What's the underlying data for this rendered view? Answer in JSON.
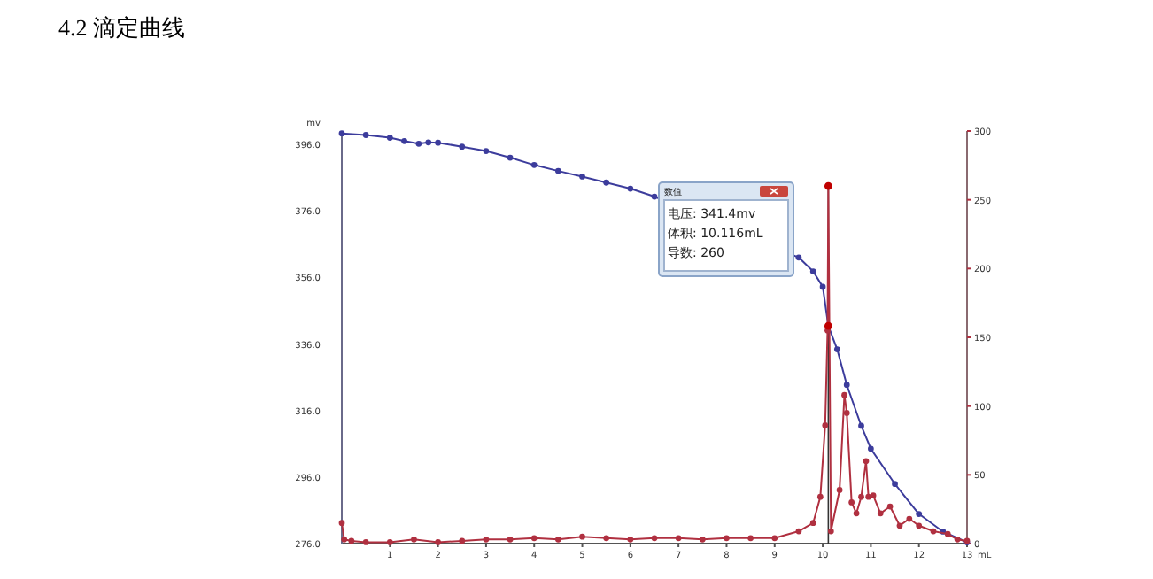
{
  "chart_data": {
    "type": "line",
    "title": "4.2  滴定曲线",
    "xlabel": "mL",
    "ylabel": "mv",
    "xlim": [
      0,
      13
    ],
    "xticks": [
      1,
      2,
      3,
      4,
      5,
      6,
      7,
      8,
      9,
      10,
      11,
      12,
      13
    ],
    "ylim": [
      276,
      400
    ],
    "yticks": [
      {
        "value": 276,
        "label": "276.0"
      },
      {
        "value": 296,
        "label": "296.0"
      },
      {
        "value": 316,
        "label": "316.0"
      },
      {
        "value": 336,
        "label": "336.0"
      },
      {
        "value": 356,
        "label": "356.0"
      },
      {
        "value": 376,
        "label": "376.0"
      },
      {
        "value": 396,
        "label": "396.0"
      }
    ],
    "y2lim": [
      0,
      300
    ],
    "y2ticks": [
      0,
      50,
      100,
      150,
      200,
      250,
      300
    ],
    "marker": "circle",
    "grid": false,
    "ref_lines": [
      {
        "axis": "x",
        "value": 10.116,
        "color": "#333333"
      }
    ],
    "annotations": [
      "数值",
      "电压: 341.4mv",
      "体积: 10.116mL",
      "导数: 260"
    ],
    "series": [
      {
        "color": "#3c3c9c",
        "x": [
          0,
          0.5,
          1,
          1.3,
          1.6,
          1.8,
          2,
          2.5,
          3,
          3.5,
          4,
          4.5,
          5,
          5.5,
          6,
          6.5,
          9.5,
          9.8,
          10,
          10.116,
          10.3,
          10.5,
          10.8,
          11,
          11.5,
          12,
          12.5,
          13
        ],
        "values": [
          399.3,
          398.8,
          398,
          397,
          396.2,
          396.6,
          396.5,
          395.3,
          394,
          392,
          389.8,
          388,
          386.3,
          384.5,
          382.7,
          380.3,
          362,
          357.8,
          353.2,
          341.4,
          334.4,
          323.7,
          311.4,
          304.5,
          293.9,
          284.9,
          279.6,
          276.4
        ]
      },
      {
        "color": "#b03040",
        "axis": "y2",
        "x": [
          0,
          0.05,
          0.2,
          0.5,
          1,
          1.5,
          2,
          2.5,
          3,
          3.5,
          4,
          4.5,
          5,
          5.5,
          6,
          6.5,
          7,
          7.5,
          8,
          8.5,
          9,
          9.5,
          9.8,
          9.95,
          10.05,
          10.1,
          10.116,
          10.17,
          10.35,
          10.45,
          10.5,
          10.6,
          10.7,
          10.8,
          10.9,
          10.95,
          11.05,
          11.2,
          11.4,
          11.6,
          11.8,
          12,
          12.3,
          12.6,
          12.8,
          13
        ],
        "values": [
          15,
          3,
          2,
          1,
          1,
          3,
          1,
          2,
          3,
          3,
          4,
          3,
          5,
          4,
          3,
          4,
          4,
          3,
          4,
          4,
          4,
          9,
          15,
          34,
          86,
          155,
          260,
          9,
          39,
          108,
          95,
          30,
          22,
          34,
          60,
          34,
          35,
          22,
          27,
          13,
          18,
          13,
          9,
          7,
          3,
          2
        ]
      }
    ]
  }
}
